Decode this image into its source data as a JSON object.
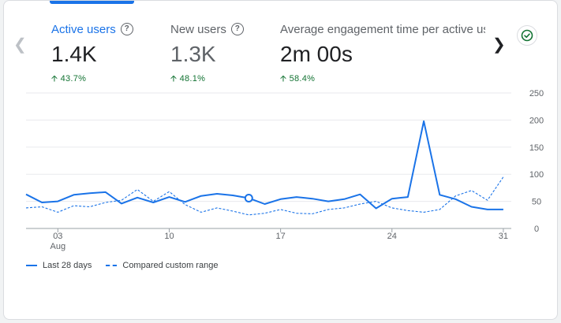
{
  "metrics": [
    {
      "label": "Active users",
      "value": "1.4K",
      "change": "43.7%"
    },
    {
      "label": "New users",
      "value": "1.3K",
      "change": "48.1%"
    },
    {
      "label": "Average engagement time per active user",
      "value": "2m 00s",
      "change": "58.4%"
    }
  ],
  "icons": {
    "prev": "chevron-left-icon",
    "next": "chevron-right-icon",
    "help": "help-circle-icon",
    "status": "check-circle-icon",
    "trend": "arrow-up-icon"
  },
  "colors": {
    "accent": "#1a73e8",
    "positive": "#137333"
  },
  "chart_data": {
    "type": "line",
    "x_tick_labels": [
      "03",
      "10",
      "17",
      "24",
      "31"
    ],
    "x_tick_sublabels": [
      "Aug",
      "",
      "",
      "",
      ""
    ],
    "x_tick_days": [
      3,
      10,
      17,
      24,
      31
    ],
    "y_ticks": [
      0,
      50,
      100,
      150,
      200,
      250
    ],
    "ylim": [
      0,
      250
    ],
    "xlim": [
      1,
      31.5
    ],
    "grid": true,
    "legend_position": "bottom-left",
    "highlight_day": 15,
    "series": [
      {
        "name": "Last 28 days",
        "style": "solid",
        "x": [
          1,
          2,
          3,
          4,
          5,
          6,
          7,
          8,
          9,
          10,
          11,
          12,
          13,
          14,
          15,
          16,
          17,
          18,
          19,
          20,
          21,
          22,
          23,
          24,
          25,
          26,
          27,
          28,
          29,
          30,
          31
        ],
        "values": [
          63,
          48,
          50,
          62,
          65,
          67,
          46,
          57,
          48,
          58,
          49,
          60,
          64,
          61,
          56,
          45,
          54,
          58,
          55,
          50,
          54,
          63,
          37,
          55,
          58,
          198,
          62,
          54,
          40,
          35,
          35
        ]
      },
      {
        "name": "Compared custom range",
        "style": "dashed",
        "x": [
          1,
          2,
          3,
          4,
          5,
          6,
          7,
          8,
          9,
          10,
          11,
          12,
          13,
          14,
          15,
          16,
          17,
          18,
          19,
          20,
          21,
          22,
          23,
          24,
          25,
          26,
          27,
          28,
          29,
          30,
          31
        ],
        "values": [
          38,
          40,
          30,
          42,
          40,
          48,
          52,
          72,
          50,
          68,
          44,
          30,
          38,
          32,
          25,
          28,
          35,
          28,
          27,
          35,
          38,
          45,
          50,
          38,
          33,
          30,
          35,
          60,
          70,
          52,
          95
        ]
      }
    ]
  }
}
